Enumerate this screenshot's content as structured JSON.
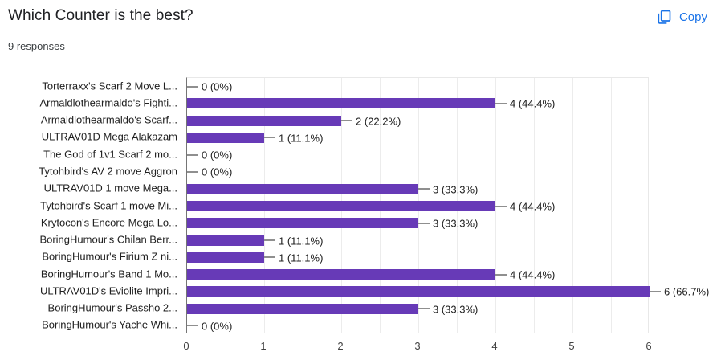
{
  "header": {
    "title": "Which Counter is the best?",
    "responses": "9 responses",
    "copy_label": "Copy"
  },
  "colors": {
    "bar": "#673ab7",
    "accent_blue": "#1a73e8",
    "axis": "#757575",
    "gridline": "#ececec",
    "text_dark": "#212121"
  },
  "chart_data": {
    "type": "bar",
    "orientation": "horizontal",
    "title": "Which Counter is the best?",
    "subtitle": "9 responses",
    "categories": [
      "Torterraxx's Scarf 2 Move L...",
      "Armaldlothearmaldo's Fighti...",
      "Armaldlothearmaldo's Scarf...",
      "ULTRAV01D Mega Alakazam",
      "The God of 1v1 Scarf 2 mo...",
      "Tytohbird's AV 2 move Aggron",
      "ULTRAV01D 1 move Mega...",
      "Tytohbird's Scarf 1 move Mi...",
      "Krytocon's Encore Mega Lo...",
      "BoringHumour's Chilan Berr...",
      "BoringHumour's Firium Z ni...",
      "BoringHumour's Band 1 Mo...",
      "ULTRAV01D's Eviolite Impri...",
      "BoringHumour's Passho 2...",
      "BoringHumour's Yache Whi..."
    ],
    "values": [
      0,
      4,
      2,
      1,
      0,
      0,
      3,
      4,
      3,
      1,
      1,
      4,
      6,
      3,
      0
    ],
    "value_labels": [
      "0 (0%)",
      "4 (44.4%)",
      "2 (22.2%)",
      "1 (11.1%)",
      "0 (0%)",
      "0 (0%)",
      "3 (33.3%)",
      "4 (44.4%)",
      "3 (33.3%)",
      "1 (11.1%)",
      "1 (11.1%)",
      "4 (44.4%)",
      "6 (66.7%)",
      "3 (33.3%)",
      "0 (0%)"
    ],
    "xlim": [
      0,
      6
    ],
    "x_ticks": [
      "0",
      "1",
      "2",
      "3",
      "4",
      "5",
      "6"
    ],
    "grid": "vertical, 0.5 step",
    "legend": "none"
  }
}
